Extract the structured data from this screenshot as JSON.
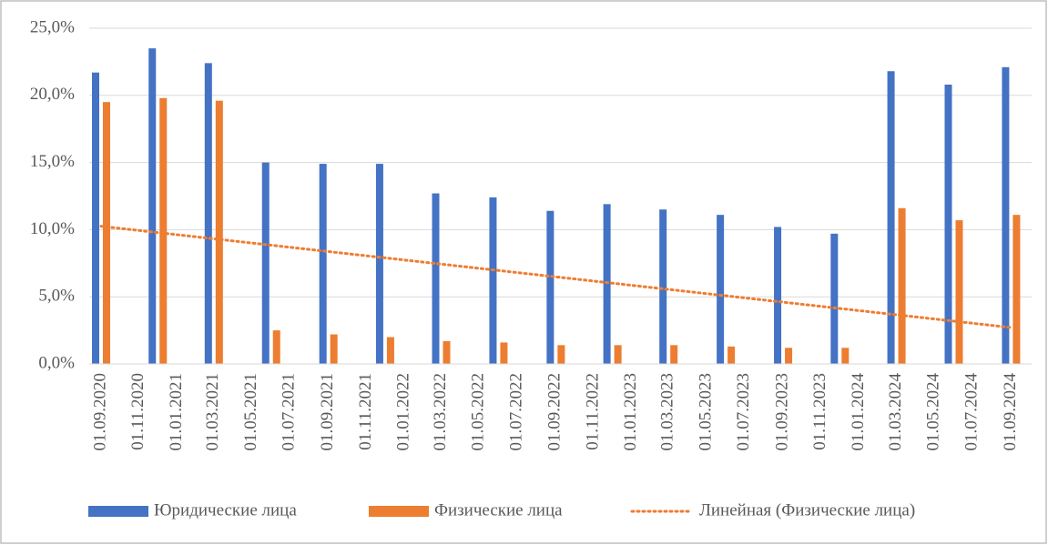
{
  "chart_data": {
    "type": "bar",
    "x": [
      "2020-09-01",
      "2020-12-01",
      "2021-03-01",
      "2021-06-01",
      "2021-09-01",
      "2021-12-01",
      "2022-03-01",
      "2022-06-01",
      "2022-09-01",
      "2022-12-01",
      "2023-03-01",
      "2023-06-01",
      "2023-09-01",
      "2023-12-01",
      "2024-03-01",
      "2024-06-01",
      "2024-09-01"
    ],
    "series": [
      {
        "name": "Юридические лица",
        "color": "#4472c4",
        "values": [
          21.7,
          23.5,
          22.4,
          15.0,
          14.9,
          14.9,
          12.7,
          12.4,
          11.4,
          11.9,
          11.5,
          11.1,
          10.2,
          9.7,
          21.8,
          20.8,
          22.1
        ]
      },
      {
        "name": "Физические лица",
        "color": "#ed7d31",
        "values": [
          19.5,
          19.8,
          19.6,
          2.5,
          2.2,
          2.0,
          1.7,
          1.6,
          1.4,
          1.4,
          1.4,
          1.3,
          1.2,
          1.2,
          11.6,
          10.7,
          11.1
        ]
      }
    ],
    "trendline": {
      "name": "Линейная (Физические лица)",
      "series": 1,
      "color": "#ed7d31"
    },
    "ylim": [
      0,
      25
    ],
    "yticks": [
      {
        "value": 0,
        "label": "0,0%"
      },
      {
        "value": 5,
        "label": "5,0%"
      },
      {
        "value": 10,
        "label": "10,0%"
      },
      {
        "value": 15,
        "label": "15,0%"
      },
      {
        "value": 20,
        "label": "20,0%"
      },
      {
        "value": 25,
        "label": "25,0%"
      }
    ],
    "xlim": [
      "2020-08-13",
      "2024-10-04"
    ],
    "xticks": [
      {
        "value": "2020-09-01",
        "label": "01.09.2020"
      },
      {
        "value": "2020-11-01",
        "label": "01.11.2020"
      },
      {
        "value": "2021-01-01",
        "label": "01.01.2021"
      },
      {
        "value": "2021-03-01",
        "label": "01.03.2021"
      },
      {
        "value": "2021-05-01",
        "label": "01.05.2021"
      },
      {
        "value": "2021-07-01",
        "label": "01.07.2021"
      },
      {
        "value": "2021-09-01",
        "label": "01.09.2021"
      },
      {
        "value": "2021-11-01",
        "label": "01.11.2021"
      },
      {
        "value": "2022-01-01",
        "label": "01.01.2022"
      },
      {
        "value": "2022-03-01",
        "label": "01.03.2022"
      },
      {
        "value": "2022-05-01",
        "label": "01.05.2022"
      },
      {
        "value": "2022-07-01",
        "label": "01.07.2022"
      },
      {
        "value": "2022-09-01",
        "label": "01.09.2022"
      },
      {
        "value": "2022-11-01",
        "label": "01.11.2022"
      },
      {
        "value": "2023-01-01",
        "label": "01.01.2023"
      },
      {
        "value": "2023-03-01",
        "label": "01.03.2023"
      },
      {
        "value": "2023-05-01",
        "label": "01.05.2023"
      },
      {
        "value": "2023-07-01",
        "label": "01.07.2023"
      },
      {
        "value": "2023-09-01",
        "label": "01.09.2023"
      },
      {
        "value": "2023-11-01",
        "label": "01.11.2023"
      },
      {
        "value": "2024-01-01",
        "label": "01.01.2024"
      },
      {
        "value": "2024-03-01",
        "label": "01.03.2024"
      },
      {
        "value": "2024-05-01",
        "label": "01.05.2024"
      },
      {
        "value": "2024-07-01",
        "label": "01.07.2024"
      },
      {
        "value": "2024-09-01",
        "label": "01.09.2024"
      }
    ],
    "grid": true
  }
}
